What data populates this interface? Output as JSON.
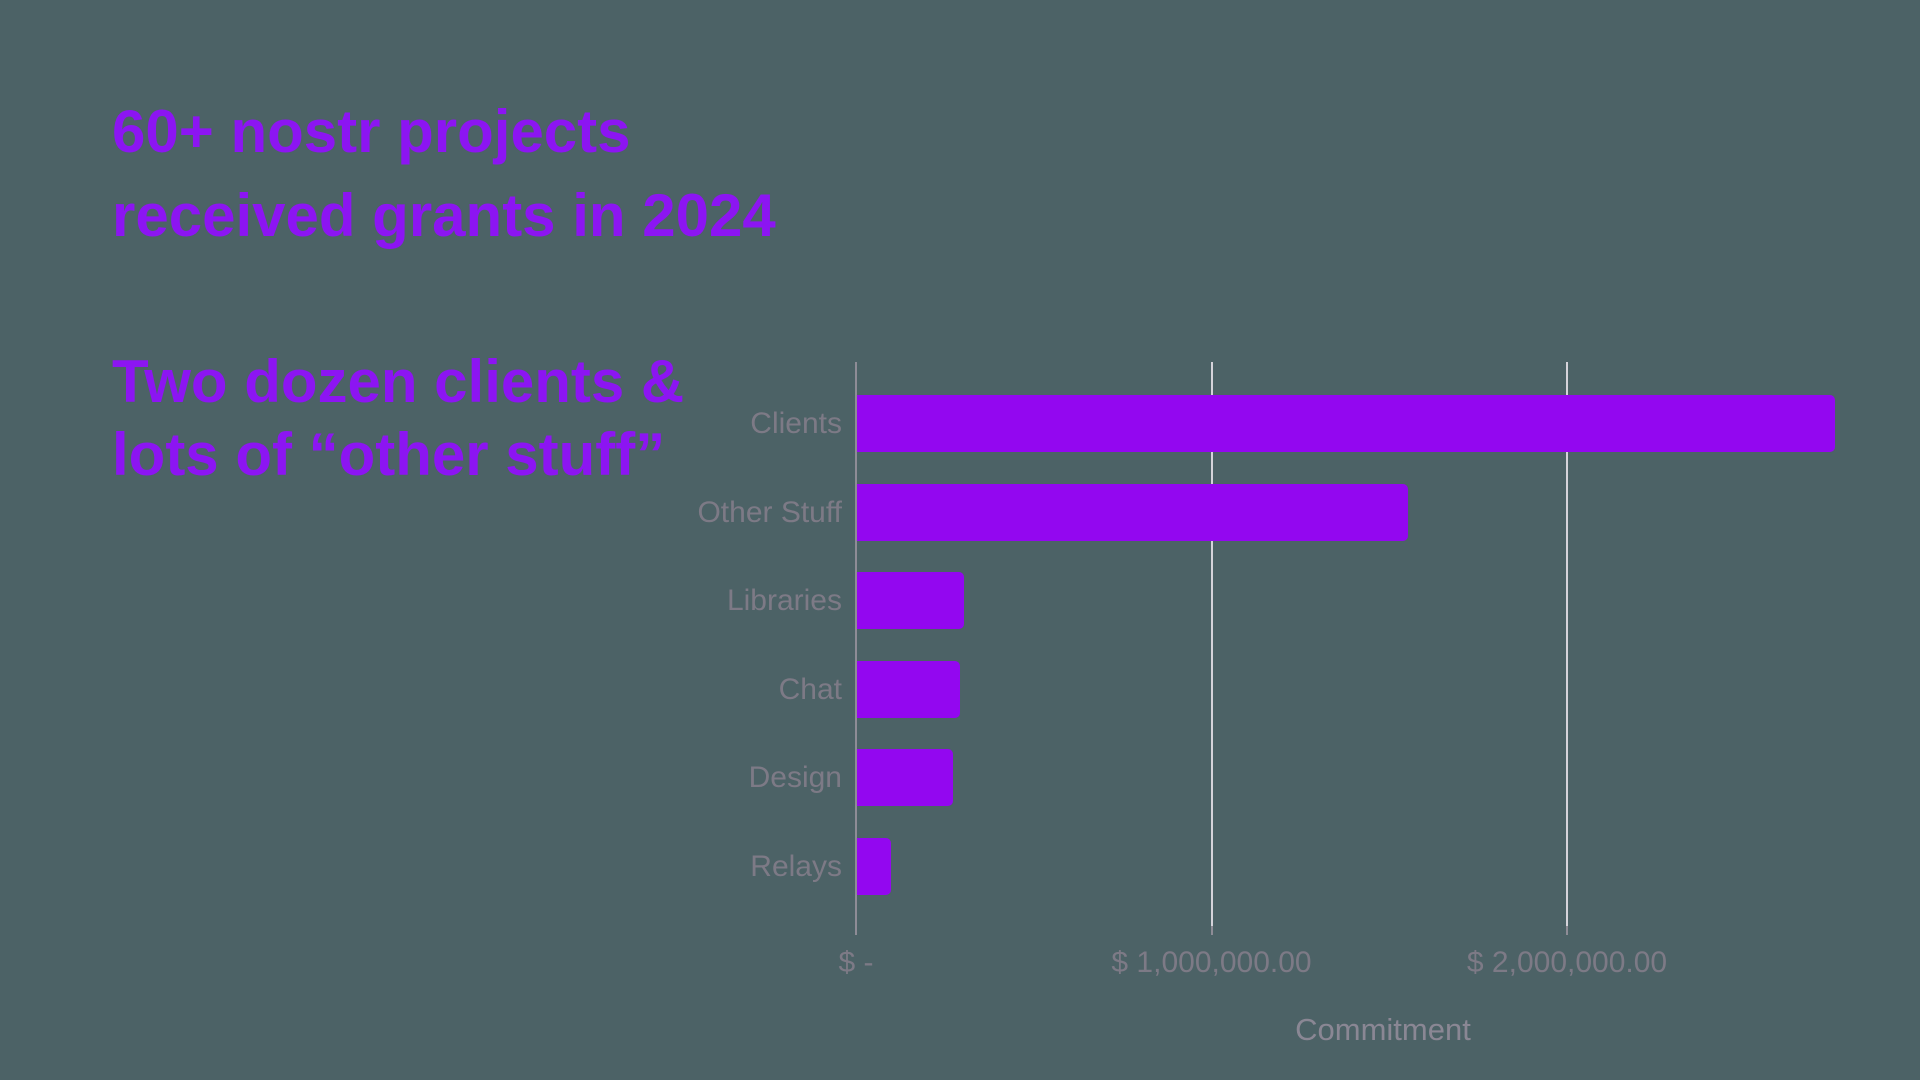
{
  "page": {
    "background_color": "#4c6266",
    "accent_color": "#8c15f2"
  },
  "heading": {
    "lines": [
      "60+ nostr projects",
      "received grants in 2024"
    ],
    "color": "#8c15f2"
  },
  "subheading": {
    "lines": [
      "Two dozen clients &",
      "lots of “other stuff”"
    ],
    "color": "#8c15f2"
  },
  "chart_data": {
    "type": "bar",
    "orientation": "horizontal",
    "title": "",
    "xlabel": "Commitment",
    "ylabel": "",
    "categories": [
      "Clients",
      "Other Stuff",
      "Libraries",
      "Chat",
      "Design",
      "Relays"
    ],
    "values": [
      2750000,
      1550000,
      300000,
      290000,
      270000,
      95000
    ],
    "xlim": [
      0,
      2965000
    ],
    "x_ticks": [
      {
        "value": 0,
        "label": "$ -"
      },
      {
        "value": 1000000,
        "label": "$ 1,000,000.00"
      },
      {
        "value": 2000000,
        "label": "$ 2,000,000.00"
      }
    ],
    "grid": "vertical value gridlines, no horizontal gridlines",
    "legend": "none",
    "bar_color": "#9307f0",
    "gridline_color": "#d5d3da",
    "axis_line_color": "#8e8c96",
    "category_label_color": "#7d7a86",
    "tick_label_color": "#7d7a86",
    "axis_title_color": "#8a8794"
  }
}
